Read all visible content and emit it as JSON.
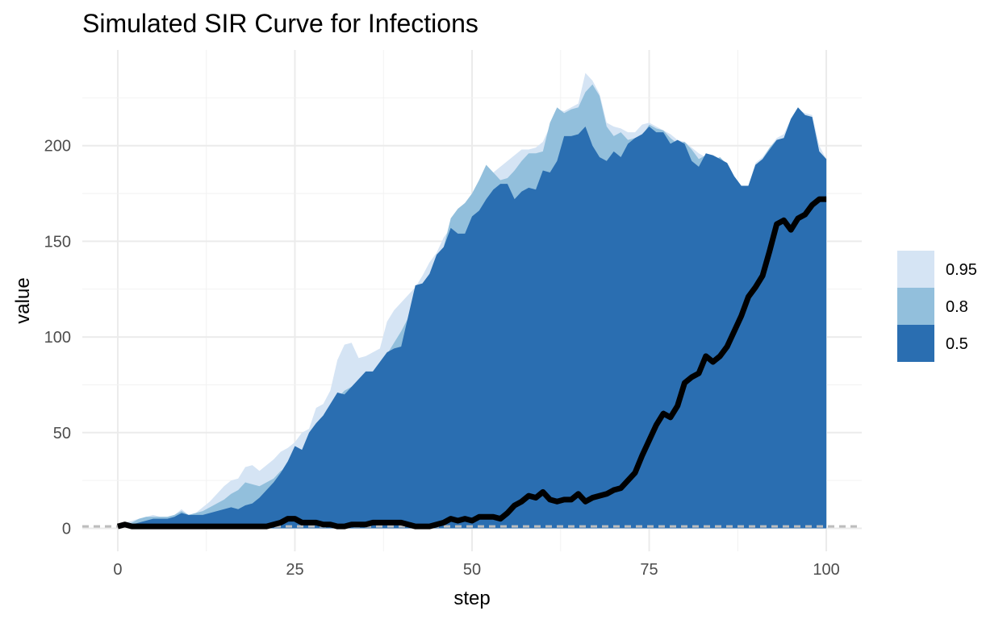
{
  "chart_data": {
    "type": "area",
    "title": "Simulated SIR Curve for Infections",
    "xlabel": "step",
    "ylabel": "value",
    "xlim": [
      -5,
      105
    ],
    "ylim": [
      -12,
      250
    ],
    "x_ticks": [
      0,
      25,
      50,
      75,
      100
    ],
    "x_tick_labels": [
      "0",
      "25",
      "50",
      "75",
      "100"
    ],
    "y_ticks": [
      0,
      50,
      100,
      150,
      200
    ],
    "y_tick_labels": [
      "0",
      "50",
      "100",
      "150",
      "200"
    ],
    "grid": true,
    "legend_position": "right",
    "x": [
      0,
      1,
      2,
      3,
      4,
      5,
      6,
      7,
      8,
      9,
      10,
      11,
      12,
      13,
      14,
      15,
      16,
      17,
      18,
      19,
      20,
      21,
      22,
      23,
      24,
      25,
      26,
      27,
      28,
      29,
      30,
      31,
      32,
      33,
      34,
      35,
      36,
      37,
      38,
      39,
      40,
      41,
      42,
      43,
      44,
      45,
      46,
      47,
      48,
      49,
      50,
      51,
      52,
      53,
      54,
      55,
      56,
      57,
      58,
      59,
      60,
      61,
      62,
      63,
      64,
      65,
      66,
      67,
      68,
      69,
      70,
      71,
      72,
      73,
      74,
      75,
      76,
      77,
      78,
      79,
      80,
      81,
      82,
      83,
      84,
      85,
      86,
      87,
      88,
      89,
      90,
      91,
      92,
      93,
      94,
      95,
      96,
      97,
      98,
      99,
      100
    ],
    "bands": [
      {
        "name": "0.95",
        "color": "#d5e4f4",
        "upper": [
          2,
          3,
          4,
          5,
          6,
          7,
          6,
          6,
          7,
          10,
          7,
          8,
          11,
          14,
          18,
          22,
          25,
          26,
          32,
          33,
          30,
          33,
          36,
          40,
          42,
          45,
          50,
          52,
          63,
          65,
          72,
          88,
          96,
          97,
          89,
          90,
          92,
          94,
          108,
          114,
          118,
          122,
          126,
          132,
          139,
          144,
          152,
          157,
          163,
          170,
          173,
          178,
          182,
          186,
          189,
          192,
          195,
          198,
          198,
          199,
          202,
          210,
          219,
          218,
          220,
          222,
          238,
          234,
          227,
          212,
          210,
          209,
          207,
          207,
          211,
          212,
          210,
          208,
          206,
          203,
          202,
          199,
          196,
          194,
          193,
          194,
          190,
          184,
          179,
          179,
          191,
          194,
          199,
          204,
          206,
          214,
          219,
          217,
          216,
          200,
          193
        ],
        "lower": [
          2,
          2,
          1,
          0,
          0,
          0,
          0,
          0,
          0,
          0,
          0,
          0,
          0,
          0,
          0,
          0,
          0,
          0,
          0,
          0,
          0,
          0,
          0,
          0,
          0,
          0,
          0,
          0,
          0,
          0,
          0,
          0,
          0,
          0,
          0,
          0,
          0,
          0,
          0,
          0,
          0,
          0,
          0,
          0,
          0,
          0,
          0,
          0,
          0,
          0,
          0,
          0,
          0,
          0,
          0,
          0,
          0,
          0,
          0,
          0,
          0,
          0,
          0,
          0,
          0,
          0,
          0,
          0,
          0,
          0,
          0,
          0,
          0,
          0,
          0,
          0,
          0,
          0,
          0,
          0,
          0,
          0,
          0,
          0,
          0,
          0,
          0,
          0,
          0,
          0,
          0,
          0,
          0,
          0,
          0,
          0,
          0,
          0,
          0,
          0,
          0
        ]
      },
      {
        "name": "0.8",
        "color": "#92bfdc",
        "upper": [
          2,
          2,
          3,
          5,
          6,
          6,
          6,
          6,
          7,
          9,
          7,
          8,
          9,
          11,
          13,
          15,
          18,
          20,
          24,
          23,
          22,
          24,
          26,
          30,
          32,
          35,
          41,
          46,
          51,
          55,
          60,
          68,
          72,
          74,
          76,
          80,
          82,
          83,
          91,
          97,
          103,
          110,
          122,
          128,
          132,
          141,
          147,
          162,
          167,
          170,
          175,
          182,
          190,
          186,
          182,
          183,
          187,
          192,
          196,
          196,
          197,
          212,
          220,
          217,
          219,
          220,
          228,
          232,
          226,
          210,
          205,
          207,
          203,
          204,
          205,
          211,
          209,
          208,
          204,
          201,
          202,
          198,
          193,
          195,
          192,
          194,
          190,
          184,
          179,
          179,
          190,
          193,
          199,
          203,
          204,
          214,
          220,
          216,
          215,
          197,
          193
        ],
        "lower": [
          2,
          2,
          1,
          0,
          0,
          0,
          0,
          0,
          0,
          0,
          0,
          0,
          0,
          0,
          0,
          0,
          0,
          0,
          0,
          0,
          0,
          0,
          0,
          0,
          0,
          0,
          0,
          0,
          0,
          0,
          0,
          0,
          0,
          0,
          0,
          0,
          0,
          0,
          0,
          0,
          0,
          0,
          0,
          0,
          0,
          0,
          0,
          0,
          0,
          0,
          0,
          0,
          0,
          0,
          0,
          0,
          0,
          0,
          0,
          0,
          0,
          0,
          0,
          0,
          0,
          0,
          0,
          0,
          0,
          0,
          0,
          0,
          0,
          0,
          0,
          0,
          0,
          0,
          0,
          0,
          0,
          0,
          0,
          0,
          0,
          0,
          0,
          0,
          0,
          0,
          0,
          0,
          0,
          0,
          0,
          0,
          0,
          0,
          0,
          0,
          0
        ]
      },
      {
        "name": "0.5",
        "color": "#2a6eb1",
        "upper": [
          2,
          2,
          2,
          3,
          4,
          5,
          5,
          5,
          6,
          8,
          7,
          7,
          7,
          8,
          9,
          10,
          11,
          10,
          12,
          13,
          16,
          20,
          24,
          29,
          35,
          43,
          41,
          50,
          55,
          59,
          65,
          71,
          70,
          74,
          78,
          82,
          82,
          87,
          92,
          94,
          95,
          111,
          127,
          128,
          133,
          143,
          147,
          157,
          154,
          154,
          163,
          166,
          172,
          177,
          180,
          180,
          172,
          176,
          178,
          177,
          187,
          186,
          192,
          205,
          205,
          206,
          210,
          200,
          194,
          192,
          197,
          194,
          201,
          204,
          206,
          210,
          207,
          207,
          201,
          203,
          201,
          192,
          189,
          196,
          195,
          193,
          191,
          184,
          179,
          179,
          190,
          193,
          198,
          203,
          204,
          214,
          220,
          216,
          215,
          197,
          193
        ],
        "lower": [
          2,
          2,
          1,
          0,
          0,
          0,
          0,
          0,
          0,
          0,
          0,
          0,
          0,
          0,
          0,
          0,
          0,
          0,
          0,
          0,
          0,
          0,
          0,
          0,
          0,
          0,
          0,
          0,
          0,
          0,
          0,
          0,
          0,
          0,
          0,
          0,
          0,
          0,
          0,
          0,
          0,
          0,
          0,
          0,
          0,
          0,
          0,
          0,
          0,
          0,
          0,
          0,
          0,
          0,
          0,
          0,
          0,
          0,
          0,
          0,
          0,
          0,
          0,
          0,
          0,
          0,
          0,
          0,
          0,
          0,
          0,
          0,
          0,
          0,
          0,
          0,
          0,
          0,
          0,
          0,
          0,
          0,
          0,
          0,
          0,
          0,
          0,
          0,
          0,
          0,
          0,
          0,
          0,
          0,
          0,
          0,
          0,
          0,
          0,
          0,
          0
        ]
      }
    ],
    "observed_line": {
      "color": "#000000",
      "values": [
        1,
        2,
        1,
        1,
        1,
        1,
        1,
        1,
        1,
        1,
        1,
        1,
        1,
        1,
        1,
        1,
        1,
        1,
        1,
        1,
        1,
        1,
        2,
        3,
        5,
        5,
        3,
        3,
        3,
        2,
        2,
        1,
        1,
        2,
        2,
        2,
        3,
        3,
        3,
        3,
        3,
        2,
        1,
        1,
        1,
        2,
        3,
        5,
        4,
        5,
        4,
        6,
        6,
        6,
        5,
        8,
        12,
        14,
        17,
        16,
        19,
        15,
        14,
        15,
        15,
        18,
        14,
        16,
        17,
        18,
        20,
        21,
        25,
        29,
        38,
        46,
        54,
        60,
        58,
        64,
        76,
        79,
        81,
        90,
        87,
        90,
        95,
        103,
        111,
        121,
        126,
        132,
        145,
        159,
        161,
        156,
        162,
        164,
        169,
        172,
        172
      ]
    },
    "reference_line": {
      "y": 1,
      "color": "#bdbdbd",
      "style": "dashed"
    }
  }
}
